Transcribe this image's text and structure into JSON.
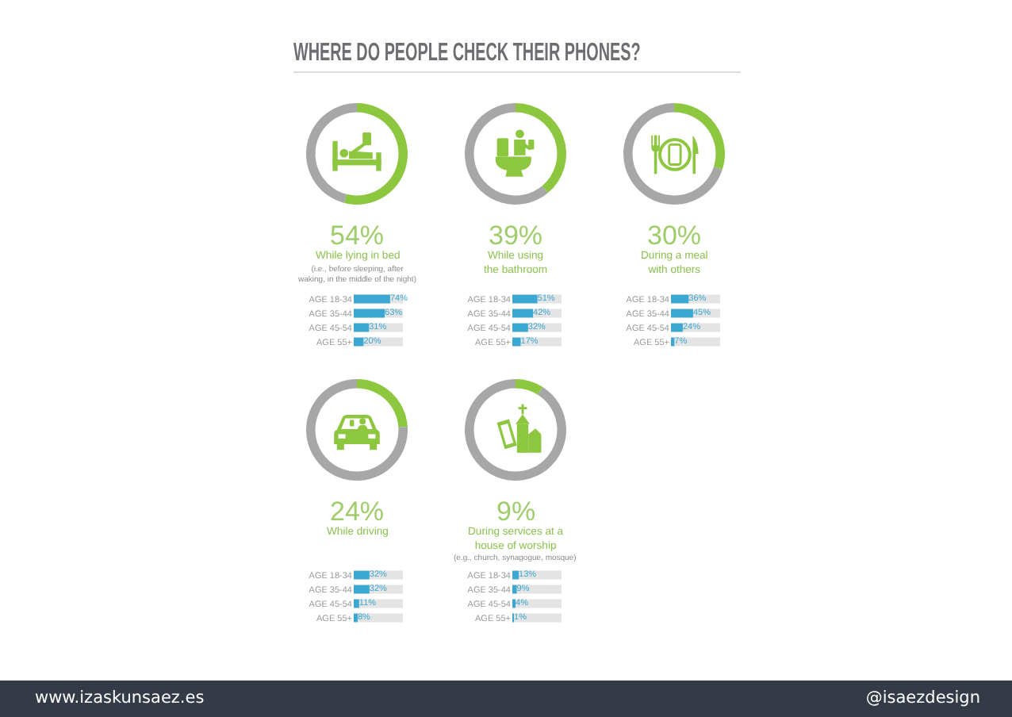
{
  "chart_data": [
    {
      "type": "other",
      "title": "WHERE DO PEOPLE CHECK THEIR PHONES?",
      "annotations": [
        "www.izaskunsaez.es",
        "@isaezdesign"
      ]
    },
    {
      "type": "donut",
      "title": "While lying in bed",
      "subtitle": "(i.e., before sleeping, after waking, in the middle of the night)",
      "annotations": [
        "54%"
      ],
      "categories": [
        null,
        null
      ],
      "values": [
        54,
        46
      ],
      "colors": [
        "#8dc63f",
        "#a7a7a7"
      ]
    },
    {
      "type": "bar",
      "orientation": "horizontal",
      "categories": [
        "AGE 18-34",
        "AGE 35-44",
        "AGE 45-54",
        "AGE 55+"
      ],
      "values": [
        74,
        63,
        31,
        20
      ],
      "color": "#3aa8d3",
      "xlim": [
        0,
        100
      ],
      "tick_labels": "y",
      "value_labels": [
        "74%",
        "63%",
        "31%",
        "20%"
      ]
    },
    {
      "type": "donut",
      "title": "While using the bathroom",
      "annotations": [
        "39%"
      ],
      "categories": [
        null,
        null
      ],
      "values": [
        39,
        61
      ],
      "colors": [
        "#8dc63f",
        "#a7a7a7"
      ]
    },
    {
      "type": "bar",
      "orientation": "horizontal",
      "categories": [
        "AGE 18-34",
        "AGE 35-44",
        "AGE 45-54",
        "AGE 55+"
      ],
      "values": [
        51,
        42,
        32,
        17
      ],
      "color": "#3aa8d3",
      "xlim": [
        0,
        100
      ],
      "tick_labels": "y",
      "value_labels": [
        "51%",
        "42%",
        "32%",
        "17%"
      ]
    },
    {
      "type": "donut",
      "title": "During a meal with others",
      "annotations": [
        "30%"
      ],
      "categories": [
        null,
        null
      ],
      "values": [
        30,
        70
      ],
      "colors": [
        "#8dc63f",
        "#a7a7a7"
      ]
    },
    {
      "type": "bar",
      "orientation": "horizontal",
      "categories": [
        "AGE 18-34",
        "AGE 35-44",
        "AGE 45-54",
        "AGE 55+"
      ],
      "values": [
        36,
        45,
        24,
        7
      ],
      "color": "#3aa8d3",
      "xlim": [
        0,
        100
      ],
      "tick_labels": "y",
      "value_labels": [
        "36%",
        "45%",
        "24%",
        "7%"
      ]
    },
    {
      "type": "donut",
      "title": "While driving",
      "annotations": [
        "24%"
      ],
      "categories": [
        null,
        null
      ],
      "values": [
        24,
        76
      ],
      "colors": [
        "#8dc63f",
        "#a7a7a7"
      ]
    },
    {
      "type": "bar",
      "orientation": "horizontal",
      "categories": [
        "AGE 18-34",
        "AGE 35-44",
        "AGE 45-54",
        "AGE 55+"
      ],
      "values": [
        32,
        32,
        11,
        8
      ],
      "color": "#3aa8d3",
      "xlim": [
        0,
        100
      ],
      "tick_labels": "y",
      "value_labels": [
        "32%",
        "32%",
        "11%",
        "8%"
      ]
    },
    {
      "type": "donut",
      "title": "During services at a house of worship",
      "subtitle": "(e.g., church, synagogue, mosque)",
      "annotations": [
        "9%"
      ],
      "categories": [
        null,
        null
      ],
      "values": [
        9,
        91
      ],
      "colors": [
        "#8dc63f",
        "#a7a7a7"
      ]
    },
    {
      "type": "bar",
      "orientation": "horizontal",
      "categories": [
        "AGE 18-34",
        "AGE 35-44",
        "AGE 45-54",
        "AGE 55+"
      ],
      "values": [
        13,
        9,
        4,
        1
      ],
      "color": "#3aa8d3",
      "xlim": [
        0,
        100
      ],
      "tick_labels": "y",
      "value_labels": [
        "13%",
        "9%",
        "4%",
        "1%"
      ]
    }
  ]
}
